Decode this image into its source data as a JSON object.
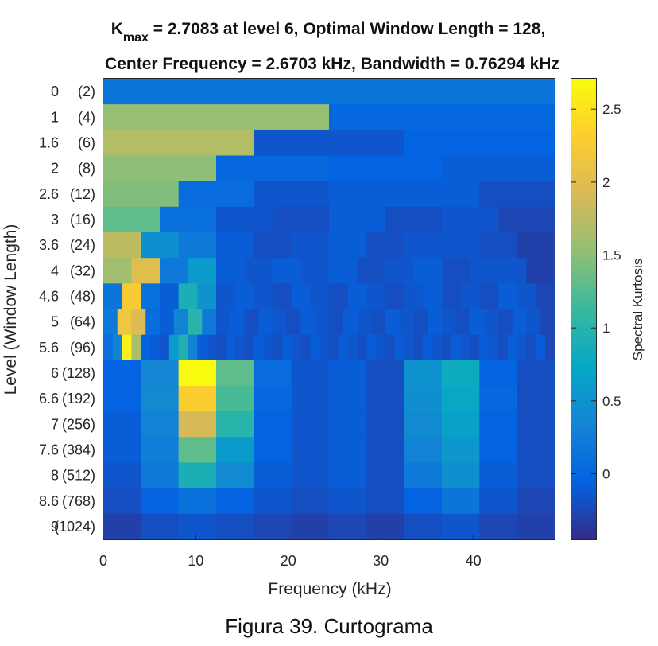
{
  "chart_data": {
    "type": "heatmap",
    "title": {
      "k_main": "K",
      "k_sub": "max",
      "line1_rest": " = 2.7083 at level 6, Optimal Window Length = 128,",
      "line2": "Center Frequency = 2.6703 kHz, Bandwidth = 0.76294 kHz"
    },
    "xlabel": "Frequency (kHz)",
    "ylabel": "Level (Window Length)",
    "colorbar_label": "Spectral Kurtosis",
    "xlim": [
      0,
      48.8
    ],
    "x_ticks": [
      "0",
      "10",
      "20",
      "30",
      "40"
    ],
    "x_tick_values": [
      0,
      10,
      20,
      30,
      40
    ],
    "colorbar_range": [
      -0.45,
      2.7083
    ],
    "colorbar_ticks": [
      "0",
      "0.5",
      "1",
      "1.5",
      "2",
      "2.5"
    ],
    "colorbar_tick_values": [
      0,
      0.5,
      1,
      1.5,
      2,
      2.5
    ],
    "levels": [
      {
        "level": "0",
        "window": "(2)",
        "bands": [
          0.15
        ]
      },
      {
        "level": "1",
        "window": "(4)",
        "bands": [
          1.55,
          0.0
        ]
      },
      {
        "level": "1.6",
        "window": "(6)",
        "bands": [
          1.7,
          -0.15,
          -0.05
        ]
      },
      {
        "level": "2",
        "window": "(8)",
        "bands": [
          1.5,
          0.0,
          -0.05,
          -0.1
        ]
      },
      {
        "level": "2.6",
        "window": "(12)",
        "bands": [
          1.45,
          0.05,
          -0.15,
          -0.1,
          -0.1,
          -0.2
        ]
      },
      {
        "level": "3",
        "window": "(16)",
        "bands": [
          1.3,
          0.1,
          -0.15,
          -0.2,
          -0.1,
          -0.2,
          -0.15,
          -0.25
        ]
      },
      {
        "level": "3.6",
        "window": "(24)",
        "bands": [
          1.75,
          0.45,
          0.2,
          -0.1,
          -0.2,
          -0.15,
          -0.1,
          -0.2,
          -0.15,
          -0.15,
          -0.2,
          -0.3
        ]
      },
      {
        "level": "4",
        "window": "(32)",
        "bands": [
          1.6,
          2.0,
          0.2,
          0.6,
          -0.1,
          -0.15,
          -0.1,
          -0.15,
          -0.1,
          -0.2,
          -0.15,
          -0.1,
          -0.2,
          -0.15,
          -0.15,
          -0.3
        ]
      },
      {
        "level": "4.6",
        "window": "(48)",
        "bands": [
          0.15,
          2.25,
          0.1,
          -0.1,
          0.9,
          0.5,
          -0.15,
          -0.1,
          -0.15,
          -0.2,
          -0.1,
          -0.15,
          -0.2,
          -0.1,
          -0.15,
          -0.2,
          -0.15,
          -0.1,
          -0.2,
          -0.15,
          -0.2,
          -0.1,
          -0.15,
          -0.25
        ]
      },
      {
        "level": "5",
        "window": "(64)",
        "bands": [
          0.2,
          2.15,
          1.95,
          0.05,
          -0.1,
          0.3,
          1.0,
          0.2,
          -0.15,
          -0.1,
          -0.2,
          -0.1,
          -0.15,
          -0.2,
          -0.1,
          -0.15,
          -0.2,
          -0.1,
          -0.15,
          -0.2,
          -0.1,
          -0.15,
          -0.2,
          -0.1,
          -0.15,
          -0.2,
          -0.1,
          -0.15,
          -0.2,
          -0.1,
          -0.15,
          -0.25
        ]
      },
      {
        "level": "5.6",
        "window": "(96)",
        "bands": [
          0.1,
          0.3,
          2.6,
          1.65,
          -0.05,
          -0.1,
          -0.15,
          0.6,
          0.95,
          0.3,
          -0.1,
          -0.15,
          -0.2,
          -0.1,
          -0.15,
          -0.2,
          -0.1,
          -0.15,
          -0.2,
          -0.1,
          -0.15,
          -0.2,
          -0.1,
          -0.15,
          -0.2,
          -0.1,
          -0.15,
          -0.2,
          -0.1,
          -0.15,
          -0.2,
          -0.1,
          -0.15,
          -0.2,
          -0.1,
          -0.15,
          -0.2,
          -0.1,
          -0.15,
          -0.2,
          -0.1,
          -0.15,
          -0.2,
          -0.1,
          -0.15,
          -0.2,
          -0.1,
          -0.25
        ]
      },
      {
        "level": "6",
        "window": "(128)",
        "bands": [
          -0.05,
          0.35,
          2.7083,
          1.3,
          0.05,
          -0.15,
          -0.1,
          -0.2,
          0.5,
          0.8,
          -0.05,
          -0.2
        ]
      },
      {
        "level": "6.6",
        "window": "(192)",
        "bands": [
          -0.05,
          0.4,
          2.3,
          1.2,
          0.0,
          -0.15,
          -0.1,
          -0.2,
          0.45,
          0.75,
          0.0,
          -0.2
        ]
      },
      {
        "level": "7",
        "window": "(256)",
        "bands": [
          -0.1,
          0.3,
          1.9,
          1.0,
          -0.05,
          -0.15,
          -0.1,
          -0.2,
          0.4,
          0.65,
          -0.05,
          -0.2
        ]
      },
      {
        "level": "7.6",
        "window": "(384)",
        "bands": [
          -0.1,
          0.25,
          1.3,
          0.6,
          -0.05,
          -0.15,
          -0.1,
          -0.2,
          0.3,
          0.55,
          -0.05,
          -0.2
        ]
      },
      {
        "level": "8",
        "window": "(512)",
        "bands": [
          -0.15,
          0.2,
          0.9,
          0.4,
          -0.1,
          -0.15,
          -0.1,
          -0.2,
          0.2,
          0.45,
          -0.1,
          -0.2
        ]
      },
      {
        "level": "8.6",
        "window": "(768)",
        "bands": [
          -0.2,
          -0.05,
          0.1,
          -0.05,
          -0.15,
          -0.2,
          -0.15,
          -0.2,
          -0.05,
          0.15,
          -0.15,
          -0.25
        ]
      },
      {
        "level": "9",
        "window": "(1024)",
        "bands": [
          -0.3,
          -0.2,
          -0.15,
          -0.2,
          -0.25,
          -0.3,
          -0.25,
          -0.3,
          -0.2,
          -0.15,
          -0.25,
          -0.3
        ]
      }
    ]
  },
  "caption": "Figura 39. Curtograma"
}
